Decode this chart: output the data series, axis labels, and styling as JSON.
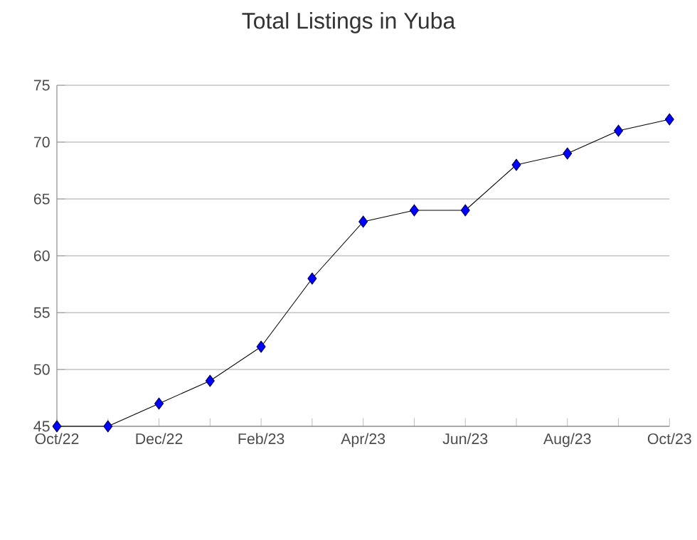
{
  "chart_data": {
    "type": "line",
    "title": "Total Listings in Yuba",
    "categories": [
      "Oct/22",
      null,
      "Dec/22",
      null,
      "Feb/23",
      null,
      "Apr/23",
      null,
      "Jun/23",
      null,
      "Aug/23",
      null,
      "Oct/23"
    ],
    "series": [
      {
        "color": "#0000ff",
        "values": [
          45,
          45,
          47,
          49,
          52,
          58,
          63,
          64,
          64,
          68,
          69,
          71,
          72
        ]
      }
    ],
    "ylim": [
      45,
      75
    ],
    "yticks": [
      45,
      50,
      55,
      60,
      65,
      70,
      75
    ],
    "grid": "y",
    "marker": "diamond",
    "line_style": "solid"
  }
}
